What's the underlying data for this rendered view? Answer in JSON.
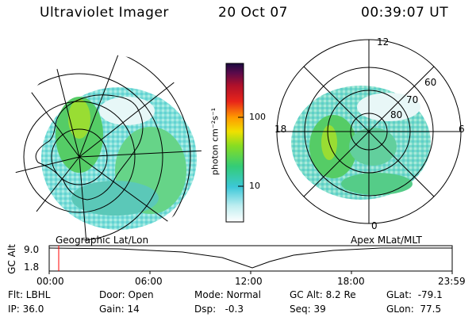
{
  "header": {
    "title": "Ultraviolet Imager",
    "date": "20 Oct 07",
    "time": "00:39:07 UT"
  },
  "left_panel": {
    "caption": "Geographic Lat/Lon"
  },
  "right_panel": {
    "caption": "Apex MLat/MLT",
    "mlt_labels": {
      "top": "12",
      "left": "18",
      "right": "6",
      "bottom": "0"
    },
    "lat_labels": [
      "60",
      "70",
      "80"
    ]
  },
  "colorbar": {
    "unit_label": "photon cm⁻²s⁻¹",
    "ticks": [
      "100",
      "10"
    ],
    "scale": "log"
  },
  "timeline": {
    "ylabel": "GC Alt",
    "y_ticks": [
      "9.0",
      "1.8"
    ],
    "x_ticks": [
      "00:00",
      "06:00",
      "12:00",
      "18:00",
      "23:59"
    ],
    "current_time_marker_color": "#ff0000"
  },
  "status": {
    "flt": "Flt: LBHL",
    "ip": "IP: 36.0",
    "door": "Door: Open",
    "gain": "Gain: 14",
    "mode": "Mode: Normal",
    "dsp": "Dsp:   -0.3",
    "gcalt": "GC Alt: 8.2 Re",
    "seq": "Seq: 39",
    "glat": "GLat:  -79.1",
    "glon": "GLon:  77.5"
  }
}
